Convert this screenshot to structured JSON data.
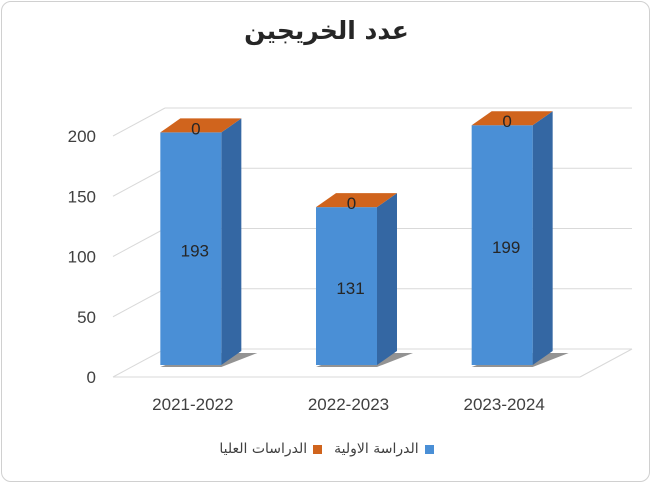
{
  "chart_data": {
    "type": "bar",
    "title": "عدد الخريجين",
    "categories": [
      "2021-2022",
      "2022-2023",
      "2023-2024"
    ],
    "series": [
      {
        "name": "الدراسة الاولية",
        "values": [
          193,
          131,
          199
        ],
        "color": "#4a8fd6"
      },
      {
        "name": "الدراسات العليا",
        "values": [
          0,
          0,
          0
        ],
        "color": "#d0641d"
      }
    ],
    "stacked": true,
    "three_d": true,
    "ylim": [
      0,
      200
    ],
    "yticks": [
      0,
      50,
      100,
      150,
      200
    ],
    "grid": true,
    "legend_position": "bottom"
  }
}
